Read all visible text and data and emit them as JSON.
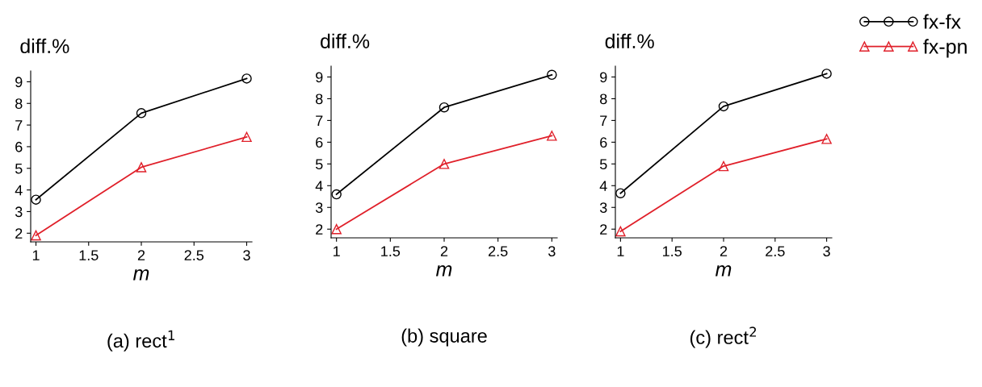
{
  "chart_data": [
    {
      "type": "line",
      "title": "(a) rect$^{1}$",
      "xlabel": "m",
      "ylabel": "diff.%",
      "x": [
        1,
        2,
        3
      ],
      "xlim": [
        0.95,
        3.05
      ],
      "ylim": [
        1.6,
        9.5
      ],
      "xticks": [
        1,
        1.5,
        2,
        2.5,
        3
      ],
      "yticks": [
        2,
        3,
        4,
        5,
        6,
        7,
        8,
        9
      ],
      "grid": false,
      "legend": "top right",
      "line_style": "solid",
      "series": [
        {
          "name": "fx-fx",
          "color": "#000000",
          "marker": "circle",
          "values": [
            3.55,
            7.55,
            9.15
          ]
        },
        {
          "name": "fx-pn",
          "color": "#e0202a",
          "marker": "triangle",
          "values": [
            1.9,
            5.05,
            6.45
          ]
        }
      ]
    },
    {
      "type": "line",
      "title": "(b) square",
      "xlabel": "m",
      "ylabel": "diff.%",
      "x": [
        1,
        2,
        3
      ],
      "xlim": [
        0.95,
        3.05
      ],
      "ylim": [
        1.6,
        9.5
      ],
      "xticks": [
        1,
        1.5,
        2,
        2.5,
        3
      ],
      "yticks": [
        2,
        3,
        4,
        5,
        6,
        7,
        8,
        9
      ],
      "grid": false,
      "line_style": "solid",
      "series": [
        {
          "color": "#000000",
          "marker": "circle",
          "values": [
            3.6,
            7.6,
            9.1
          ]
        },
        {
          "color": "#e0202a",
          "marker": "triangle",
          "values": [
            2.0,
            5.0,
            6.3
          ]
        }
      ]
    },
    {
      "type": "line",
      "title": "(c) rect$^{2}$",
      "xlabel": "m",
      "ylabel": "diff.%",
      "x": [
        1,
        2,
        3
      ],
      "xlim": [
        0.95,
        3.05
      ],
      "ylim": [
        1.6,
        9.5
      ],
      "xticks": [
        1,
        1.5,
        2,
        2.5,
        3
      ],
      "yticks": [
        2,
        3,
        4,
        5,
        6,
        7,
        8,
        9
      ],
      "grid": false,
      "line_style": "solid",
      "series": [
        {
          "color": "#000000",
          "marker": "circle",
          "values": [
            3.65,
            7.65,
            9.15
          ]
        },
        {
          "color": "#e0202a",
          "marker": "triangle",
          "values": [
            1.9,
            4.9,
            6.15
          ]
        }
      ]
    }
  ]
}
